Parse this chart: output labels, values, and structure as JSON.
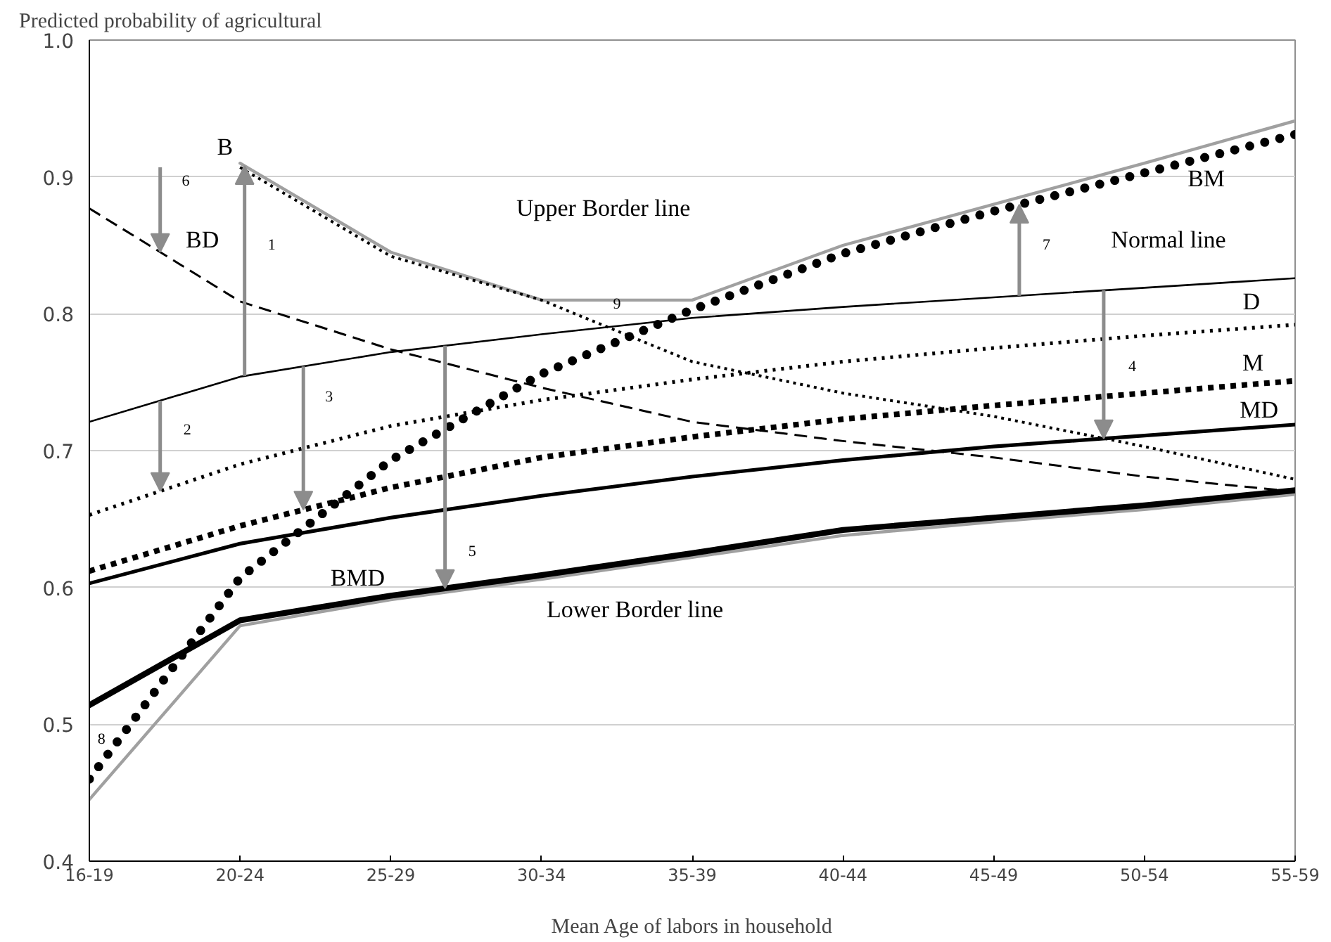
{
  "chart_data": {
    "type": "line",
    "ylabel": "Predicted probability of agricultural",
    "xlabel": "Mean Age of labors in household",
    "categories": [
      "16-19",
      "20-24",
      "25-29",
      "30-34",
      "35-39",
      "40-44",
      "45-49",
      "50-54",
      "55-59"
    ],
    "ylim": [
      0.4,
      1.0
    ],
    "yticks": [
      0.4,
      0.5,
      0.6,
      0.7,
      0.8,
      0.9,
      {
        "value": 1.0,
        "label": "1.0"
      }
    ],
    "grid": "y",
    "series": [
      {
        "name": "Upper Border line",
        "color": "#a0a0a0",
        "line_style": "solid",
        "values": [
          null,
          0.91,
          0.845,
          0.81,
          0.81,
          0.85,
          0.88,
          0.91,
          0.941
        ]
      },
      {
        "name": "Lower Border line",
        "color": "#a0a0a0",
        "line_style": "solid",
        "values": [
          0.445,
          0.572,
          0.591,
          0.606,
          0.622,
          0.638,
          0.648,
          0.657,
          0.668
        ]
      },
      {
        "name": "Normal line",
        "color": "#000000",
        "line_style": "solid",
        "values": [
          0.721,
          0.754,
          0.772,
          0.785,
          0.797,
          0.805,
          0.812,
          0.819,
          0.826
        ]
      },
      {
        "name": "B",
        "color": "#000000",
        "line_style": "dotted",
        "values": [
          null,
          0.907,
          0.842,
          0.81,
          0.765,
          0.742,
          0.725,
          0.703,
          0.679
        ]
      },
      {
        "name": "BD",
        "color": "#000000",
        "line_style": "dashed",
        "values": [
          0.877,
          0.809,
          0.774,
          0.746,
          0.721,
          0.707,
          0.695,
          0.681,
          0.67
        ]
      },
      {
        "name": "BM",
        "color": "#000000",
        "line_style": "dotted",
        "values": [
          0.46,
          0.607,
          0.693,
          0.756,
          0.803,
          0.844,
          0.875,
          0.903,
          0.931
        ]
      },
      {
        "name": "D",
        "color": "#000000",
        "line_style": "dotted",
        "values": [
          0.653,
          0.69,
          0.718,
          0.737,
          0.752,
          0.765,
          0.775,
          0.784,
          0.792
        ]
      },
      {
        "name": "M",
        "color": "#000000",
        "line_style": "dotted",
        "values": [
          0.612,
          0.645,
          0.673,
          0.695,
          0.71,
          0.723,
          0.733,
          0.742,
          0.751
        ]
      },
      {
        "name": "MD",
        "color": "#000000",
        "line_style": "solid",
        "values": [
          0.603,
          0.632,
          0.651,
          0.667,
          0.681,
          0.693,
          0.703,
          0.711,
          0.719
        ]
      },
      {
        "name": "BMD",
        "color": "#000000",
        "line_style": "solid",
        "values": [
          0.514,
          0.576,
          0.594,
          0.609,
          0.625,
          0.642,
          0.651,
          0.66,
          0.671
        ]
      }
    ],
    "annotations": [
      "1",
      "2",
      "3",
      "4",
      "5",
      "6",
      "7",
      "8",
      "9"
    ]
  }
}
